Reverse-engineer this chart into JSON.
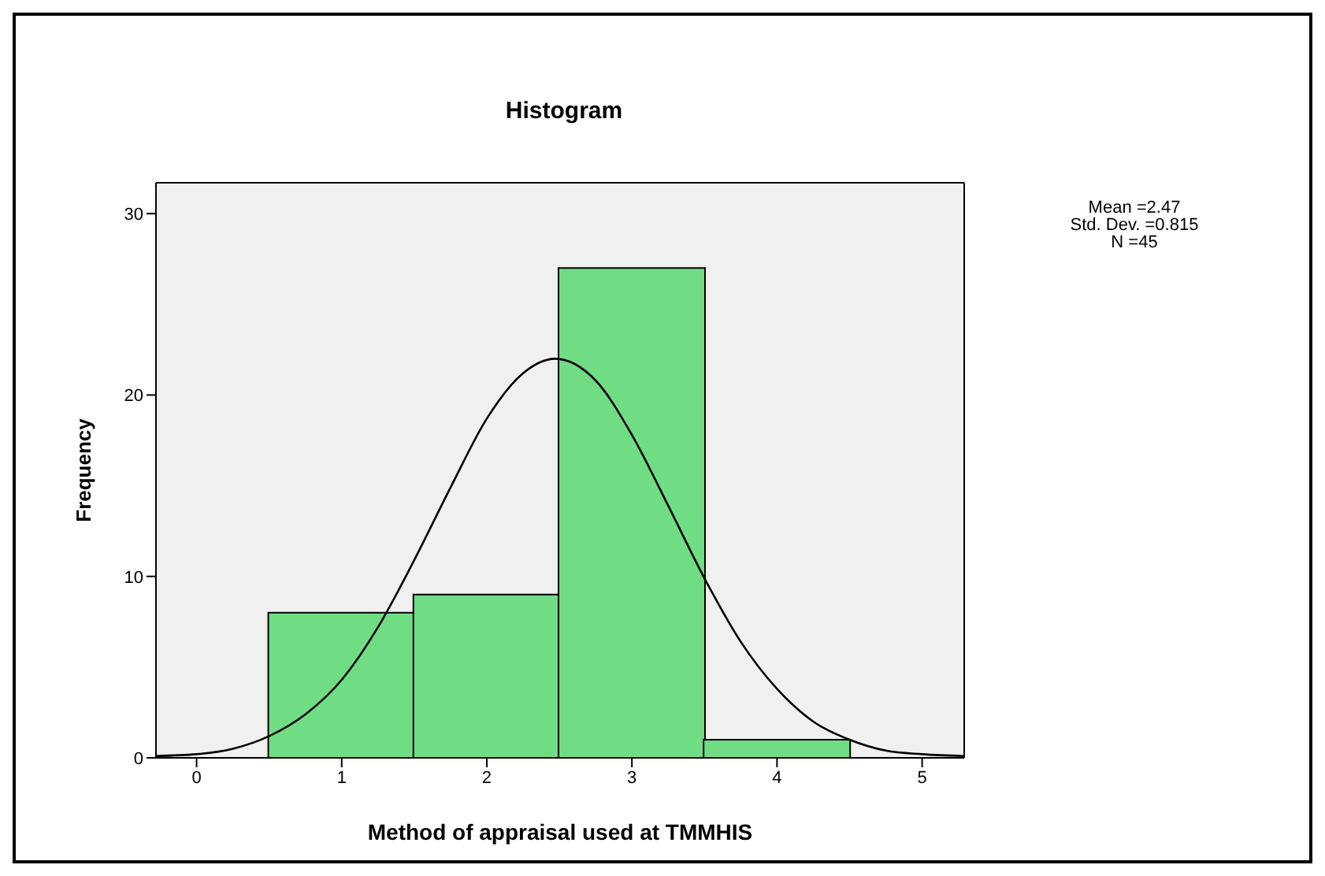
{
  "chart_data": {
    "type": "histogram",
    "title": "Histogram",
    "xlabel": "Method of appraisal used at TMMHIS",
    "ylabel": "Frequency",
    "bins": [
      0.5,
      1.5,
      2.5,
      3.5,
      4.5
    ],
    "values": [
      8,
      9,
      27,
      1
    ],
    "color": "#70dd85",
    "series": [
      {
        "type": "line",
        "color": "#000000",
        "x": [
          -0.28,
          0,
          0.25,
          0.5,
          0.75,
          1,
          1.25,
          1.5,
          1.75,
          2,
          2.25,
          2.47,
          2.75,
          3,
          3.25,
          3.5,
          3.75,
          4,
          4.25,
          4.5,
          4.75,
          5,
          5.29
        ],
        "values": [
          0.1,
          0.2,
          0.5,
          1.2,
          2.4,
          4.3,
          7.2,
          10.9,
          14.9,
          18.7,
          21.2,
          22,
          20.8,
          17.8,
          13.9,
          9.9,
          6.4,
          3.8,
          2,
          1,
          0.4,
          0.2,
          0.1
        ]
      }
    ],
    "annotations": [
      "Mean =2.47",
      "Std. Dev. =0.815",
      "N =45"
    ],
    "xlim": [
      -0.28,
      5.29
    ],
    "xticks": [
      0,
      1,
      2,
      3,
      4,
      5
    ],
    "ylim": [
      0,
      31.7
    ],
    "yticks": [
      0,
      10,
      20,
      30
    ],
    "marker": "none"
  }
}
